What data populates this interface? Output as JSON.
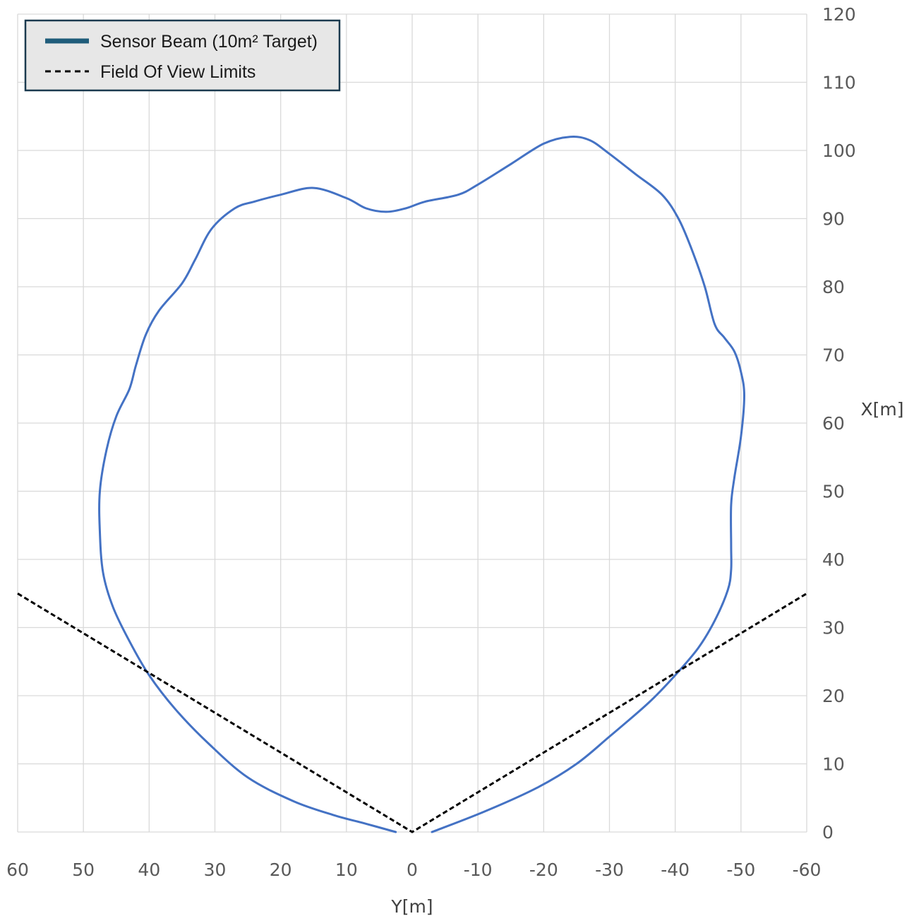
{
  "chart_data": {
    "type": "line",
    "xlabel": "Y[m]",
    "ylabel": "X[m]",
    "xlim": [
      60,
      -60
    ],
    "ylim": [
      0,
      120
    ],
    "x_ticks": [
      "60",
      "50",
      "40",
      "30",
      "20",
      "10",
      "0",
      "-10",
      "-20",
      "-30",
      "-40",
      "-50",
      "-60"
    ],
    "y_ticks": [
      "0",
      "10",
      "20",
      "30",
      "40",
      "50",
      "60",
      "70",
      "80",
      "90",
      "100",
      "110",
      "120"
    ],
    "grid": true,
    "legend": {
      "placement": "top-left",
      "entries": [
        {
          "label": "Sensor Beam (10m² Target)",
          "style": "solid",
          "color": "#1f5c7a"
        },
        {
          "label": "Field Of View Limits",
          "style": "dashed",
          "color": "#000000"
        }
      ]
    },
    "series": [
      {
        "name": "Sensor Beam (10m² Target)",
        "color": "#4472c4",
        "points": [
          [
            2.5,
            0
          ],
          [
            7,
            1.2
          ],
          [
            12,
            2.5
          ],
          [
            18,
            4.5
          ],
          [
            25,
            8
          ],
          [
            31,
            13
          ],
          [
            36,
            18
          ],
          [
            40,
            23
          ],
          [
            43,
            28
          ],
          [
            45.5,
            33
          ],
          [
            47,
            38
          ],
          [
            47.5,
            44
          ],
          [
            47.5,
            50
          ],
          [
            46.5,
            56
          ],
          [
            45,
            61
          ],
          [
            43,
            65
          ],
          [
            42,
            68.5
          ],
          [
            40.5,
            73
          ],
          [
            38.5,
            76.5
          ],
          [
            35,
            80.5
          ],
          [
            33,
            84
          ],
          [
            30.5,
            88.5
          ],
          [
            27,
            91.5
          ],
          [
            24,
            92.5
          ],
          [
            20,
            93.5
          ],
          [
            15,
            94.5
          ],
          [
            10,
            93
          ],
          [
            7,
            91.5
          ],
          [
            4,
            91
          ],
          [
            1,
            91.5
          ],
          [
            -2,
            92.5
          ],
          [
            -7,
            93.5
          ],
          [
            -10,
            95
          ],
          [
            -15,
            98
          ],
          [
            -20,
            101
          ],
          [
            -24,
            102
          ],
          [
            -27,
            101.5
          ],
          [
            -30,
            99.5
          ],
          [
            -34,
            96.5
          ],
          [
            -38,
            93.5
          ],
          [
            -40.5,
            90
          ],
          [
            -42.5,
            85.5
          ],
          [
            -44.5,
            80
          ],
          [
            -46,
            74.5
          ],
          [
            -47.5,
            72.5
          ],
          [
            -49,
            70.5
          ],
          [
            -50,
            67.5
          ],
          [
            -50.5,
            64
          ],
          [
            -50,
            58
          ],
          [
            -49,
            52
          ],
          [
            -48.5,
            48
          ],
          [
            -48.5,
            42
          ],
          [
            -48.5,
            38.5
          ],
          [
            -48,
            35.5
          ],
          [
            -46,
            31
          ],
          [
            -43.5,
            27
          ],
          [
            -40,
            23
          ],
          [
            -36,
            19
          ],
          [
            -30,
            14
          ],
          [
            -25,
            10
          ],
          [
            -19,
            6.5
          ],
          [
            -11,
            3
          ],
          [
            -3,
            0
          ]
        ]
      },
      {
        "name": "Field Of View Limits",
        "color": "#000000",
        "dashed": true,
        "points": [
          [
            60,
            35
          ],
          [
            0,
            0
          ],
          [
            -60,
            35
          ]
        ]
      }
    ]
  }
}
